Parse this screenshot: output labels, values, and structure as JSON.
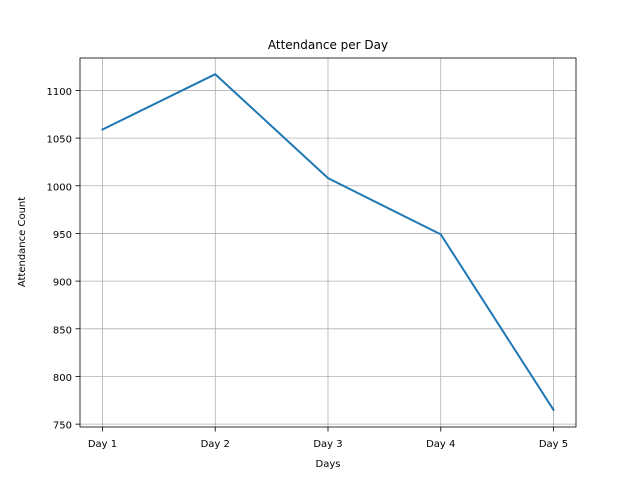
{
  "chart_data": {
    "type": "line",
    "title": "Attendance per Day",
    "xlabel": "Days",
    "ylabel": "Attendance Count",
    "categories": [
      "Day 1",
      "Day 2",
      "Day 3",
      "Day 4",
      "Day 5"
    ],
    "series": [
      {
        "values": [
          1059,
          1117,
          1008,
          949,
          765
        ]
      }
    ],
    "ylim": [
      747,
      1134
    ],
    "yticks": [
      750,
      800,
      850,
      900,
      950,
      1000,
      1050,
      1100
    ],
    "grid": true,
    "line_color": "#1f77b4"
  }
}
